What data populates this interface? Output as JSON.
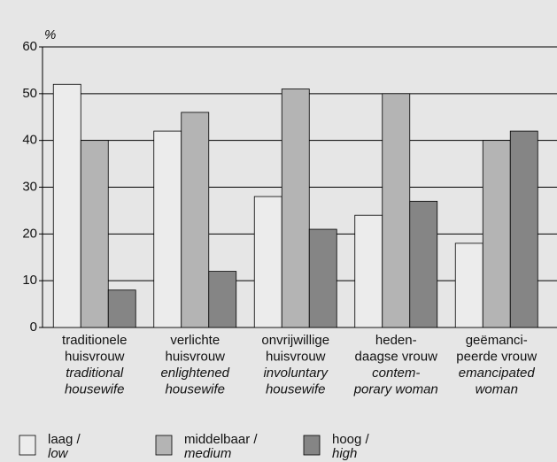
{
  "chart_data": {
    "type": "bar",
    "y_label": "%",
    "categories": [
      [
        "traditionele",
        "huisvrouw"
      ],
      [
        "verlichte",
        "huisvrouw"
      ],
      [
        "onvrijwillige",
        "huisvrouw"
      ],
      [
        "heden-",
        "daagse vrouw"
      ],
      [
        "geëmanci-",
        "peerde vrouw"
      ]
    ],
    "categories_en": [
      [
        "traditional",
        "housewife"
      ],
      [
        "enlightened",
        "housewife"
      ],
      [
        "involuntary",
        "housewife"
      ],
      [
        "contem-",
        "porary woman"
      ],
      [
        "emancipated",
        "woman"
      ]
    ],
    "series": [
      {
        "name": "laag /",
        "name_en": "low",
        "color": "#ececec",
        "values": [
          52,
          42,
          28,
          24,
          18
        ]
      },
      {
        "name": "middelbaar /",
        "name_en": "medium",
        "color": "#b4b4b4",
        "values": [
          40,
          46,
          51,
          50,
          40
        ]
      },
      {
        "name": "hoog /",
        "name_en": "high",
        "color": "#858585",
        "values": [
          8,
          12,
          21,
          27,
          42
        ]
      }
    ],
    "ylim": [
      0,
      60
    ],
    "yticks": [
      0,
      10,
      20,
      30,
      40,
      50,
      60
    ],
    "grid": true
  }
}
